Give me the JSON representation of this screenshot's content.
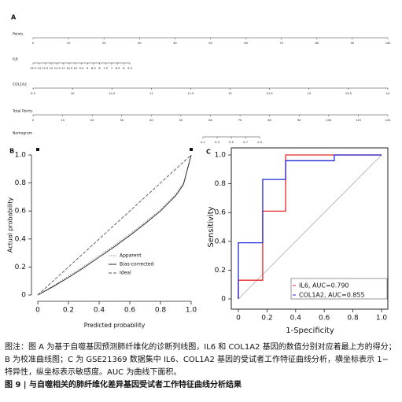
{
  "chart_data": [
    {
      "type": "nomogram",
      "panel": "A",
      "rows": [
        {
          "label": "Points",
          "ticks": [
            0,
            10,
            20,
            30,
            40,
            50,
            60,
            70,
            80,
            90,
            100
          ]
        },
        {
          "label": "IL6",
          "ticks": [
            13.5,
            13,
            12.5,
            12,
            11.5,
            11,
            10.5,
            10,
            9.5,
            9,
            8.5,
            8,
            7.5,
            7,
            6.5,
            6,
            5.5
          ]
        },
        {
          "label": "COL1A2",
          "ticks": [
            9.5,
            10,
            10.5,
            11,
            11.5,
            12,
            12.5,
            13,
            13.5,
            14
          ]
        },
        {
          "label": "Total Points",
          "ticks": [
            0,
            10,
            20,
            30,
            40,
            50,
            60,
            70,
            80,
            90,
            100,
            110,
            120
          ]
        },
        {
          "label": "Nomogram",
          "ticks": [
            0.1,
            0.3,
            0.5,
            0.7,
            0.9
          ]
        }
      ]
    },
    {
      "type": "line",
      "panel": "B",
      "xlabel": "Predicted probability",
      "ylabel": "Actual probability",
      "xlim": [
        0,
        1
      ],
      "ylim": [
        0,
        1
      ],
      "xticks": [
        0,
        0.2,
        0.4,
        0.6,
        0.8,
        {
          "value": 1,
          "label": "1.0"
        }
      ],
      "yticks": [
        0,
        0.2,
        0.4,
        0.6,
        0.8,
        {
          "value": 1,
          "label": "1.0"
        }
      ],
      "x": [
        0,
        0.1,
        0.2,
        0.3,
        0.4,
        0.5,
        0.6,
        0.7,
        0.8,
        0.9,
        0.95,
        1
      ],
      "series": [
        {
          "name": "Apparent",
          "color": "#888888",
          "dash": "dotted",
          "values": [
            0,
            0.065,
            0.135,
            0.205,
            0.28,
            0.355,
            0.435,
            0.52,
            0.61,
            0.72,
            0.8,
            1
          ]
        },
        {
          "name": "Bias-corrected",
          "color": "#222222",
          "dash": "solid",
          "values": [
            0,
            0.06,
            0.125,
            0.195,
            0.27,
            0.345,
            0.425,
            0.51,
            0.6,
            0.71,
            0.79,
            1
          ]
        },
        {
          "name": "Ideal",
          "color": "#555555",
          "dash": "dashed",
          "values": [
            0,
            0.1,
            0.2,
            0.3,
            0.4,
            0.5,
            0.6,
            0.7,
            0.8,
            0.9,
            0.95,
            1
          ]
        }
      ]
    },
    {
      "type": "line",
      "panel": "C",
      "xlabel": "1-Specificity",
      "ylabel": "Sensitivity",
      "xlim": [
        0,
        1
      ],
      "ylim": [
        0,
        1
      ],
      "xticks": [
        0,
        0.2,
        0.4,
        0.6,
        0.8,
        {
          "value": 1,
          "label": "1.0"
        }
      ],
      "yticks": [
        0,
        0.2,
        0.4,
        0.6,
        0.8,
        {
          "value": 1,
          "label": "1.0"
        }
      ],
      "series": [
        {
          "name": "IL6, AUC=0.790",
          "color": "#e8262a",
          "dash": "solid",
          "x": [
            0,
            0,
            0.17,
            0.17,
            0.33,
            0.33,
            1
          ],
          "values": [
            0,
            0.13,
            0.13,
            0.61,
            0.61,
            1,
            1
          ]
        },
        {
          "name": "COL1A2, AUC=0.855",
          "color": "#1f2bd6",
          "dash": "solid",
          "x": [
            0,
            0,
            0.17,
            0.17,
            0.33,
            0.33,
            0.67,
            0.67,
            1
          ],
          "values": [
            0,
            0.39,
            0.39,
            0.83,
            0.83,
            0.96,
            0.96,
            1,
            1
          ]
        }
      ]
    }
  ],
  "caption": {
    "text": "图注：图 A 为基于自噬基因预测肺纤维化的诊断列线图，IL6 和 COL1A2 基因的数值分别对应着最上方的得分；B 为校准曲线图；C 为 GSE21369 数据集中 IL6、COL1A2 基因的受试者工作特征曲线分析，横坐标表示 1− 特异性，纵坐标表示敏感度。AUC 为曲线下面积。",
    "title": "图 9 | 与自噬相关的肺纤维化差异基因受试者工作特征曲线分析结果"
  }
}
